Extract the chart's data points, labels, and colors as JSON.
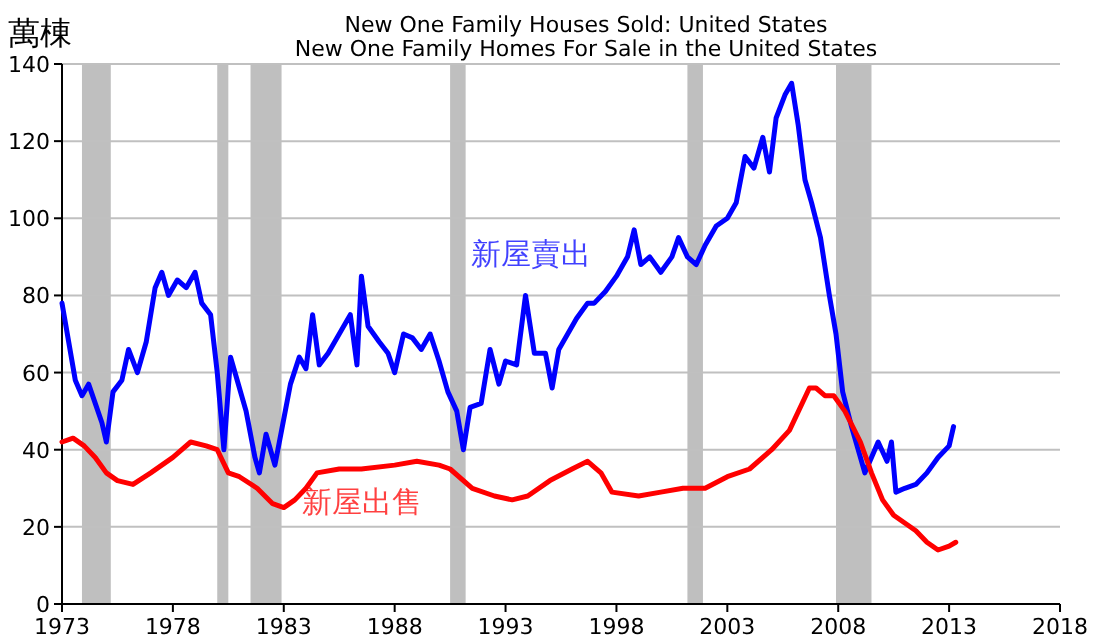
{
  "chart_data": {
    "type": "line",
    "title": "New One Family Houses Sold: United States",
    "subtitle": "New One Family Homes For Sale in the United States",
    "ylabel": "萬棟",
    "xlim": [
      1973,
      2018
    ],
    "xticks": [
      1973,
      1978,
      1983,
      1988,
      1993,
      1998,
      2003,
      2008,
      2013,
      2018
    ],
    "ylim": [
      0,
      140
    ],
    "yticks": [
      0,
      20,
      40,
      60,
      80,
      100,
      120,
      140
    ],
    "grid": "y",
    "bands": [
      {
        "axis": "x",
        "from": 1973.9,
        "to": 1975.2,
        "color": "#bfbfbf"
      },
      {
        "axis": "x",
        "from": 1980.0,
        "to": 1980.5,
        "color": "#bfbfbf"
      },
      {
        "axis": "x",
        "from": 1981.5,
        "to": 1982.9,
        "color": "#bfbfbf"
      },
      {
        "axis": "x",
        "from": 1990.5,
        "to": 1991.2,
        "color": "#bfbfbf"
      },
      {
        "axis": "x",
        "from": 2001.2,
        "to": 2001.9,
        "color": "#bfbfbf"
      },
      {
        "axis": "x",
        "from": 2007.9,
        "to": 2009.5,
        "color": "#bfbfbf"
      }
    ],
    "series": [
      {
        "name": "新屋賣出",
        "color": "#0000ff",
        "x": [
          1973.0,
          1973.3,
          1973.6,
          1973.9,
          1974.2,
          1974.5,
          1974.8,
          1975.0,
          1975.3,
          1975.7,
          1976.0,
          1976.4,
          1976.8,
          1977.2,
          1977.5,
          1977.8,
          1978.2,
          1978.6,
          1979.0,
          1979.3,
          1979.7,
          1980.0,
          1980.3,
          1980.6,
          1980.9,
          1981.3,
          1981.7,
          1981.9,
          1982.2,
          1982.6,
          1982.9,
          1983.3,
          1983.7,
          1984.0,
          1984.3,
          1984.6,
          1985.0,
          1985.5,
          1986.0,
          1986.3,
          1986.5,
          1986.8,
          1987.3,
          1987.7,
          1988.0,
          1988.4,
          1988.8,
          1989.2,
          1989.6,
          1990.0,
          1990.4,
          1990.8,
          1991.1,
          1991.4,
          1991.9,
          1992.3,
          1992.7,
          1993.0,
          1993.5,
          1993.9,
          1994.3,
          1994.8,
          1995.1,
          1995.4,
          1995.8,
          1996.2,
          1996.7,
          1997.0,
          1997.5,
          1998.0,
          1998.5,
          1998.8,
          1999.1,
          1999.5,
          2000.0,
          2000.5,
          2000.8,
          2001.2,
          2001.6,
          2002.0,
          2002.5,
          2003.0,
          2003.4,
          2003.8,
          2004.2,
          2004.6,
          2004.9,
          2005.2,
          2005.6,
          2005.9,
          2006.2,
          2006.5,
          2006.8,
          2007.2,
          2007.6,
          2007.9,
          2008.2,
          2008.6,
          2009.0,
          2009.2,
          2009.5,
          2009.8,
          2010.2,
          2010.4,
          2010.6,
          2011.0,
          2011.5,
          2012.0,
          2012.5,
          2013.0,
          2013.2
        ],
        "values": [
          78,
          68,
          58,
          54,
          57,
          52,
          47,
          42,
          55,
          58,
          66,
          60,
          68,
          82,
          86,
          80,
          84,
          82,
          86,
          78,
          75,
          60,
          40,
          64,
          58,
          50,
          38,
          34,
          44,
          36,
          45,
          57,
          64,
          61,
          75,
          62,
          65,
          70,
          75,
          62,
          85,
          72,
          68,
          65,
          60,
          70,
          69,
          66,
          70,
          63,
          55,
          50,
          40,
          51,
          52,
          66,
          57,
          63,
          62,
          80,
          65,
          65,
          56,
          66,
          70,
          74,
          78,
          78,
          81,
          85,
          90,
          97,
          88,
          90,
          86,
          90,
          95,
          90,
          88,
          93,
          98,
          100,
          104,
          116,
          113,
          121,
          112,
          126,
          132,
          135,
          124,
          110,
          104,
          95,
          80,
          70,
          55,
          46,
          38,
          34,
          38,
          42,
          37,
          42,
          29,
          30,
          31,
          34,
          38,
          41,
          46
        ]
      },
      {
        "name": "新屋出售",
        "color": "#ff0000",
        "x": [
          1973.0,
          1973.5,
          1974.0,
          1974.5,
          1975.0,
          1975.5,
          1976.2,
          1977.0,
          1978.0,
          1978.8,
          1979.5,
          1980.0,
          1980.5,
          1981.0,
          1981.8,
          1982.5,
          1983.0,
          1983.5,
          1984.0,
          1984.5,
          1985.5,
          1986.5,
          1988.0,
          1989.0,
          1990.0,
          1990.5,
          1991.5,
          1992.5,
          1993.3,
          1994.0,
          1995.0,
          1996.0,
          1996.7,
          1997.3,
          1997.8,
          1999.0,
          2000.0,
          2001.0,
          2002.0,
          2003.0,
          2004.0,
          2005.0,
          2005.8,
          2006.7,
          2007.0,
          2007.4,
          2007.8,
          2008.3,
          2009.0,
          2009.5,
          2010.0,
          2010.5,
          2011.0,
          2011.5,
          2012.0,
          2012.5,
          2013.0,
          2013.3
        ],
        "values": [
          42,
          43,
          41,
          38,
          34,
          32,
          31,
          34,
          38,
          42,
          41,
          40,
          34,
          33,
          30,
          26,
          25,
          27,
          30,
          34,
          35,
          35,
          36,
          37,
          36,
          35,
          30,
          28,
          27,
          28,
          32,
          35,
          37,
          34,
          29,
          28,
          29,
          30,
          30,
          33,
          35,
          40,
          45,
          56,
          56,
          54,
          54,
          50,
          42,
          34,
          27,
          23,
          21,
          19,
          16,
          14,
          15,
          16
        ]
      }
    ]
  }
}
